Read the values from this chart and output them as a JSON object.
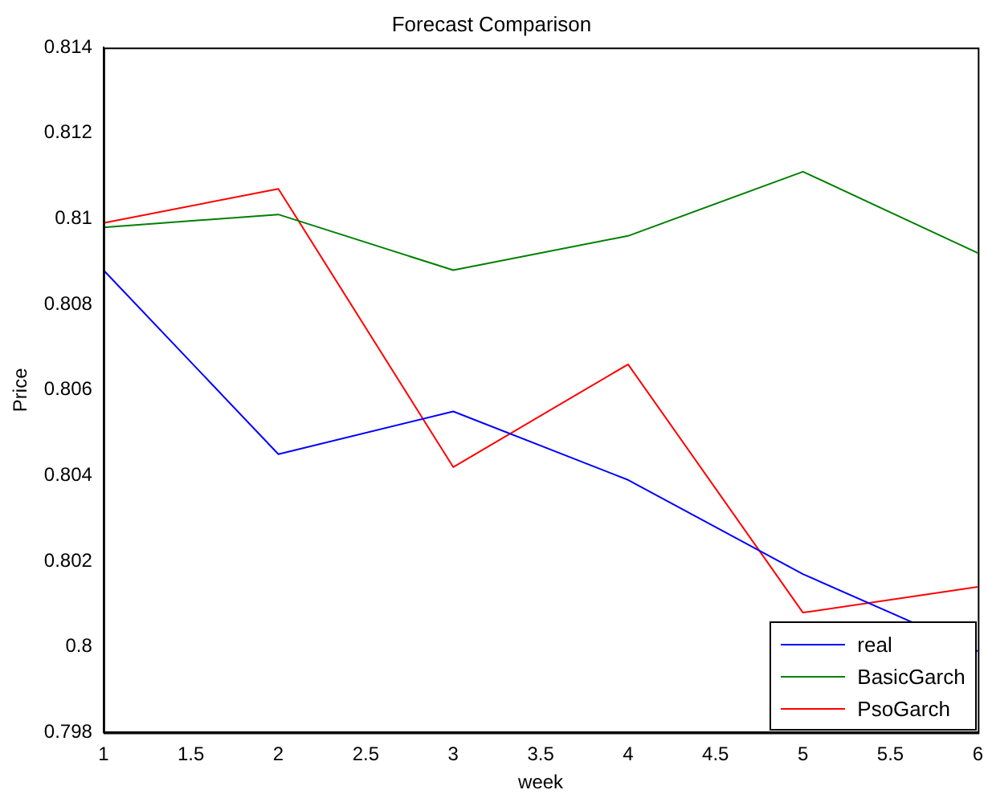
{
  "chart_data": {
    "type": "line",
    "title": "Forecast Comparison",
    "xlabel": "week",
    "ylabel": "Price",
    "x": [
      1,
      2,
      3,
      4,
      5,
      6
    ],
    "series": [
      {
        "name": "real",
        "color": "#0000ff",
        "values": [
          0.8088,
          0.8045,
          0.8055,
          0.8039,
          0.8017,
          0.7999
        ]
      },
      {
        "name": "BasicGarch",
        "color": "#008000",
        "values": [
          0.8098,
          0.8101,
          0.8088,
          0.8096,
          0.8111,
          0.8092
        ]
      },
      {
        "name": "PsoGarch",
        "color": "#ff0000",
        "values": [
          0.8099,
          0.8107,
          0.8042,
          0.8066,
          0.8008,
          0.8014
        ]
      }
    ],
    "xlim": [
      1,
      6
    ],
    "xticks": [
      1,
      1.5,
      2,
      2.5,
      3,
      3.5,
      4,
      4.5,
      5,
      5.5,
      6
    ],
    "ylim": [
      0.798,
      0.814
    ],
    "yticks": [
      0.798,
      0.8,
      0.802,
      0.804,
      0.806,
      0.808,
      0.81,
      0.812,
      0.814
    ],
    "grid": false,
    "legend": "bottom right",
    "marker": "none",
    "line_style": "solid"
  }
}
